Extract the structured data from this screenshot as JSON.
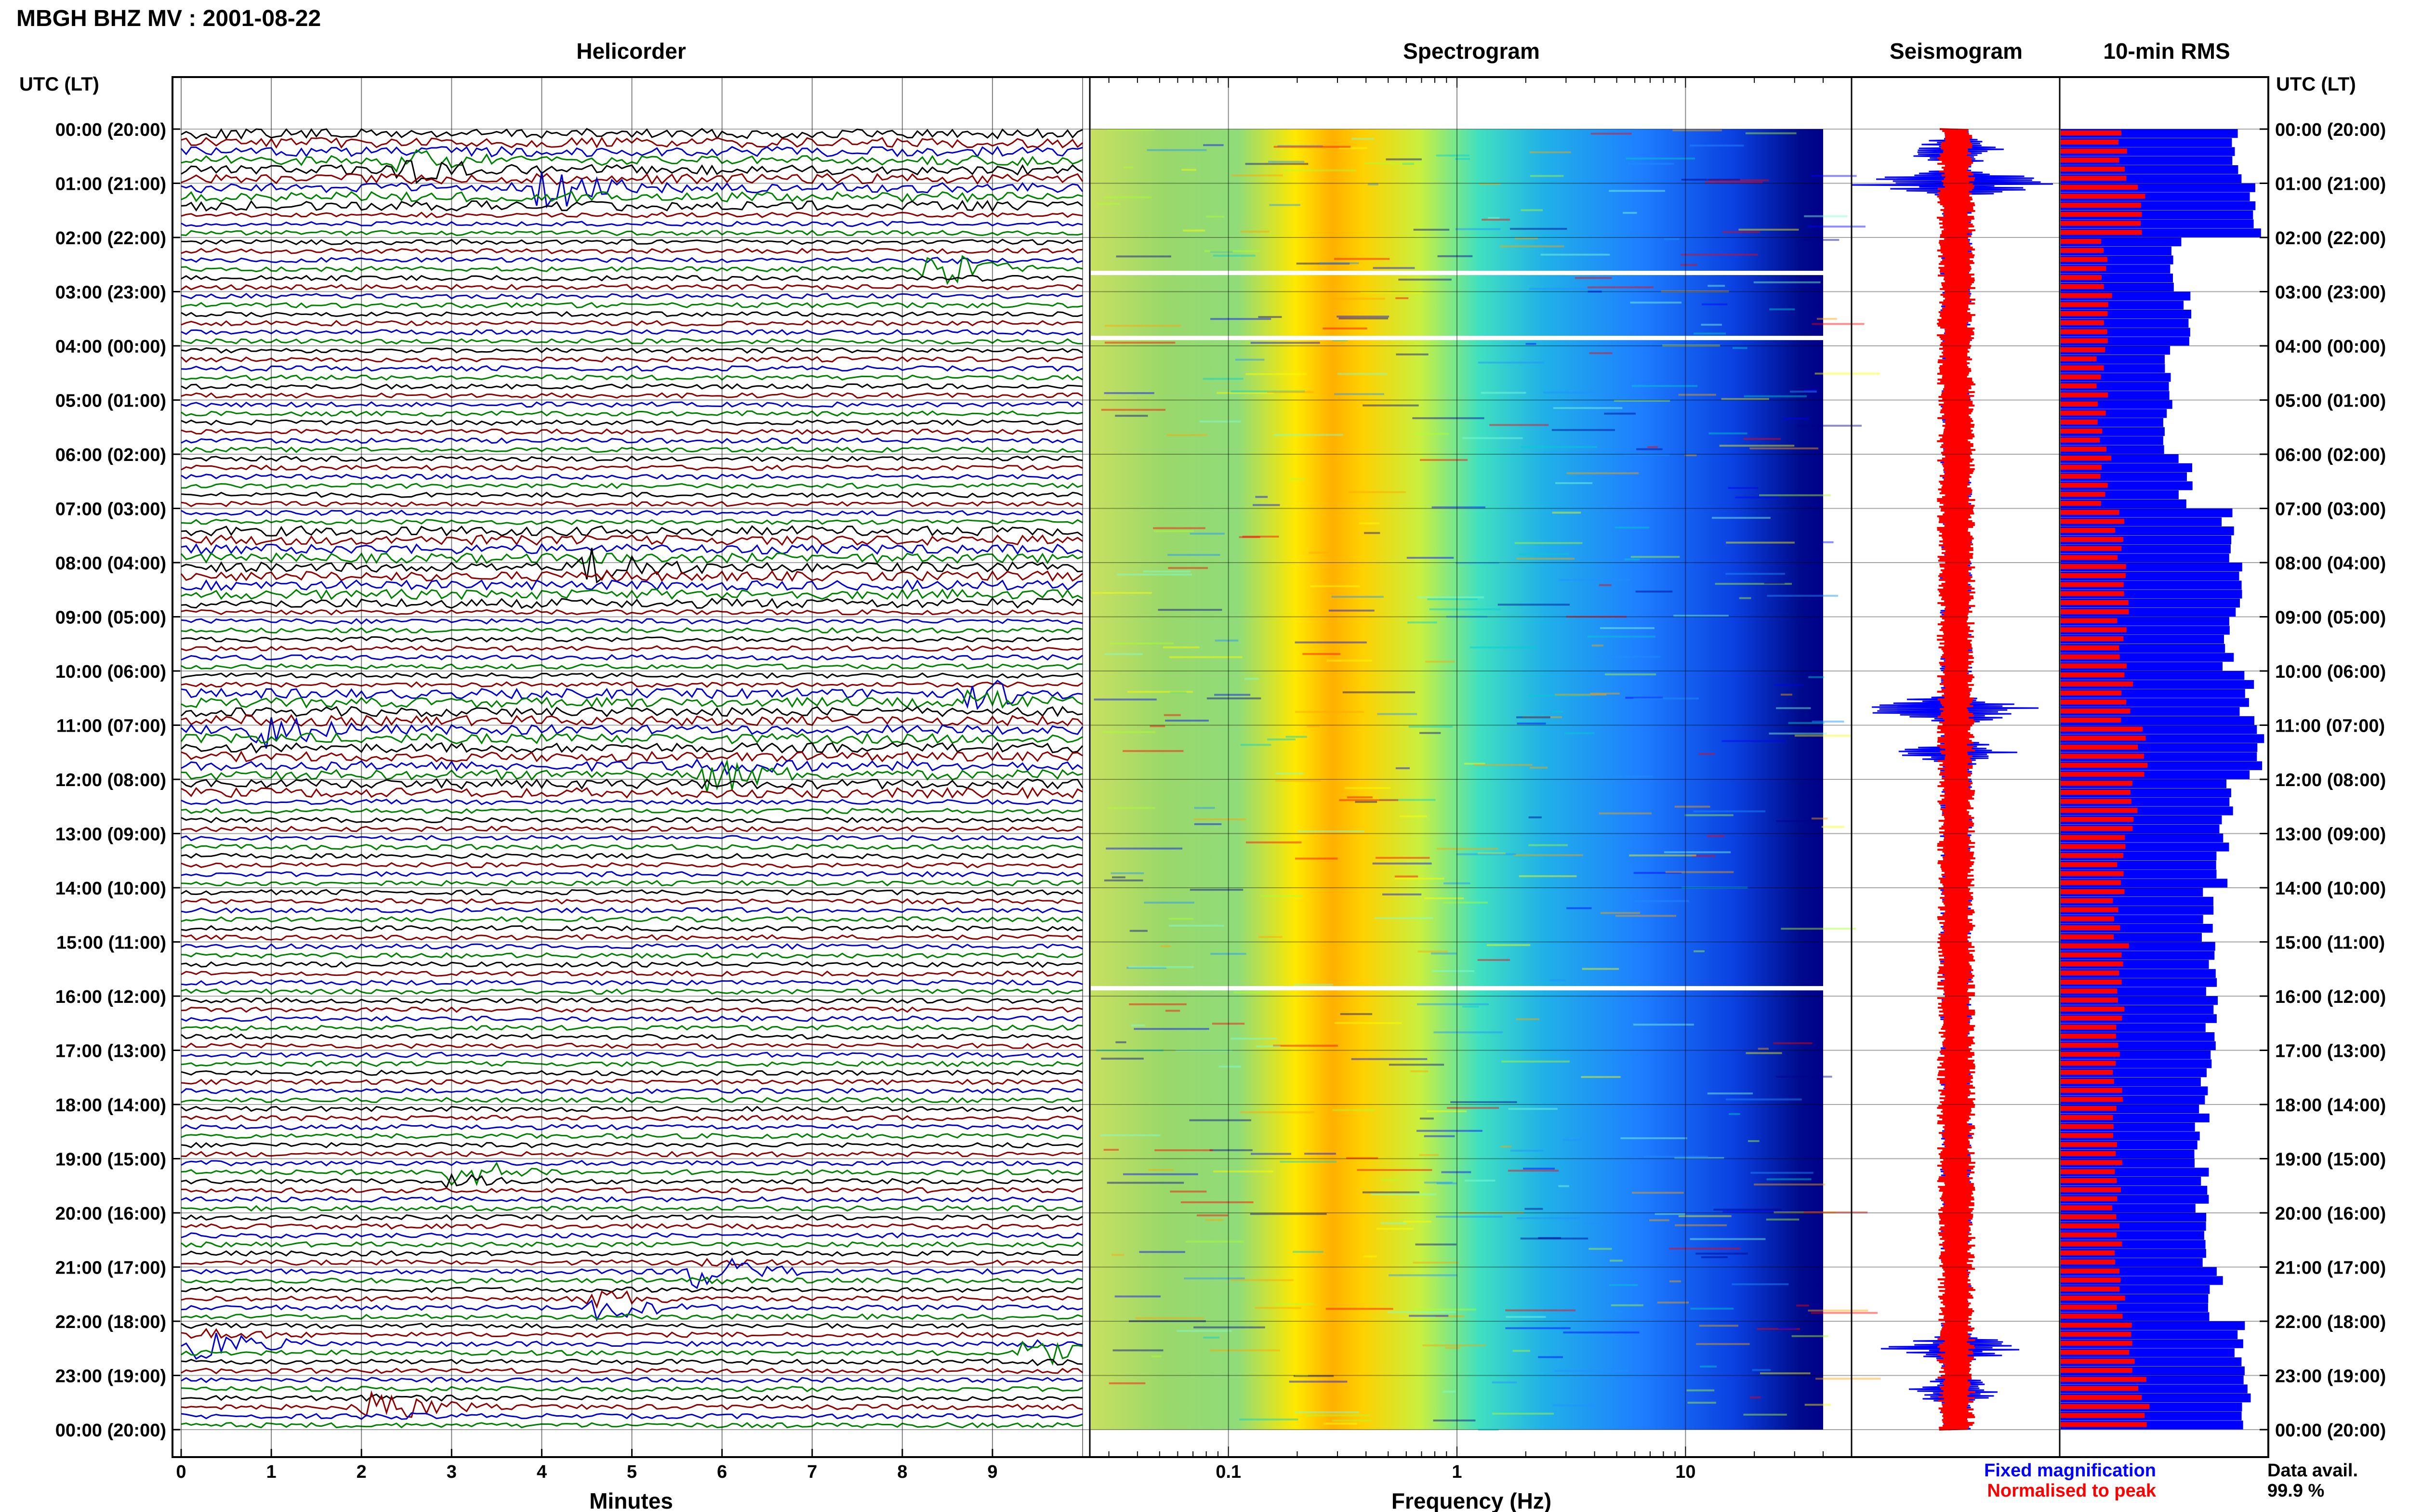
{
  "header": {
    "title": "MBGH BHZ MV : 2001-08-22"
  },
  "panels": {
    "helicorder": "Helicorder",
    "spectrogram": "Spectrogram",
    "seismogram": "Seismogram",
    "rms": "10-min RMS"
  },
  "time_axis": {
    "label": "UTC (LT)",
    "ticks": [
      "00:00 (20:00)",
      "01:00 (21:00)",
      "02:00 (22:00)",
      "03:00 (23:00)",
      "04:00 (00:00)",
      "05:00 (01:00)",
      "06:00 (02:00)",
      "07:00 (03:00)",
      "08:00 (04:00)",
      "09:00 (05:00)",
      "10:00 (06:00)",
      "11:00 (07:00)",
      "12:00 (08:00)",
      "13:00 (09:00)",
      "14:00 (10:00)",
      "15:00 (11:00)",
      "16:00 (12:00)",
      "17:00 (13:00)",
      "18:00 (14:00)",
      "19:00 (15:00)",
      "20:00 (16:00)",
      "21:00 (17:00)",
      "22:00 (18:00)",
      "23:00 (19:00)",
      "00:00 (20:00)"
    ]
  },
  "helicorder_axis": {
    "label": "Minutes",
    "ticks": [
      "0",
      "1",
      "2",
      "3",
      "4",
      "5",
      "6",
      "7",
      "8",
      "9"
    ]
  },
  "spectrogram_axis": {
    "label": "Frequency (Hz)",
    "ticks": [
      "0.1",
      "1",
      "10"
    ]
  },
  "legend": {
    "fixed": "Fixed magnification",
    "normalised": "Normalised to peak",
    "fixed_color": "#0000ff",
    "normalised_color": "#ff0000"
  },
  "availability": {
    "label": "Data avail.",
    "value": "99.9 %"
  },
  "chart_data": [
    {
      "type": "line",
      "title": "Helicorder",
      "xlabel": "Minutes",
      "xlim": [
        0,
        10
      ],
      "rows_per_hour": 6,
      "trace_colors": [
        "#000000",
        "#8b0000",
        "#0000cd",
        "#008000"
      ],
      "note_events": [
        {
          "hour": 0.6,
          "minute": 2.6
        },
        {
          "hour": 1.0,
          "minute": 4.2
        },
        {
          "hour": 2.5,
          "minute": 8.5
        },
        {
          "hour": 8.0,
          "minute": 4.7
        },
        {
          "hour": 10.4,
          "minute": 9.0
        },
        {
          "hour": 11.0,
          "minute": 1.0
        },
        {
          "hour": 11.8,
          "minute": 6.0
        },
        {
          "hour": 19.2,
          "minute": 3.2
        },
        {
          "hour": 21.0,
          "minute": 5.9
        },
        {
          "hour": 21.6,
          "minute": 4.8
        },
        {
          "hour": 22.3,
          "minute": 0.4
        },
        {
          "hour": 22.5,
          "minute": 9.6
        },
        {
          "hour": 23.5,
          "minute": 2.3
        }
      ]
    },
    {
      "type": "heatmap",
      "title": "Spectrogram",
      "xlabel": "Frequency (Hz)",
      "xscale": "log",
      "xlim": [
        0.025,
        40
      ],
      "ylim_hours": [
        0,
        24
      ],
      "peak_band_hz": [
        0.25,
        0.6
      ],
      "gaps_hours": [
        2.65,
        3.85,
        15.85
      ],
      "colormap": [
        "#00008b",
        "#0000ff",
        "#1e90ff",
        "#00ced1",
        "#7fffd4",
        "#adff2f",
        "#ffff00",
        "#ffa500",
        "#ff0000"
      ]
    },
    {
      "type": "line",
      "title": "Seismogram",
      "series": [
        {
          "name": "Fixed magnification",
          "color": "#0000ff"
        },
        {
          "name": "Normalised to peak",
          "color": "#ff0000"
        }
      ]
    },
    {
      "type": "bar",
      "title": "10-min RMS",
      "bins_per_hour": 6,
      "hours": 24,
      "series": [
        {
          "name": "Fixed magnification",
          "color": "#0000ff",
          "hourly_level": [
            0.85,
            0.95,
            0.55,
            0.6,
            0.5,
            0.5,
            0.6,
            0.8,
            0.88,
            0.82,
            0.9,
            0.95,
            0.8,
            0.78,
            0.7,
            0.72,
            0.72,
            0.7,
            0.68,
            0.68,
            0.7,
            0.75,
            0.85,
            0.9
          ]
        },
        {
          "name": "Normalised to peak",
          "color": "#ff0000",
          "hourly_level": [
            0.3,
            0.4,
            0.22,
            0.22,
            0.2,
            0.2,
            0.22,
            0.28,
            0.32,
            0.3,
            0.32,
            0.4,
            0.35,
            0.3,
            0.28,
            0.3,
            0.28,
            0.28,
            0.27,
            0.27,
            0.28,
            0.3,
            0.35,
            0.4
          ]
        }
      ]
    }
  ]
}
